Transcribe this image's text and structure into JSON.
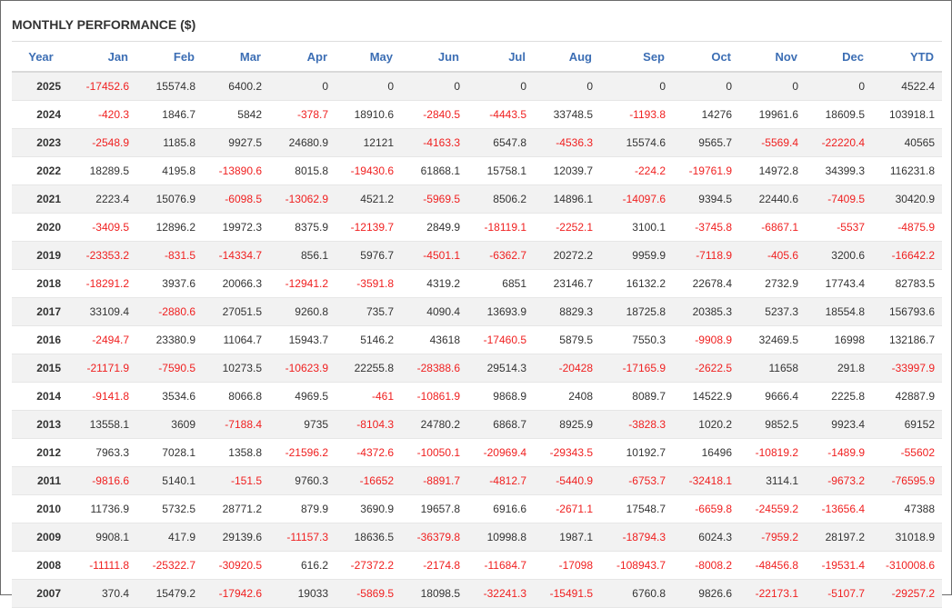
{
  "title": "MONTHLY PERFORMANCE ($)",
  "colors": {
    "header": "#3c6eb4",
    "negative": "#f02020",
    "positive": "#333333",
    "stripe": "#f2f2f2"
  },
  "chart_data": {
    "type": "table",
    "title": "MONTHLY PERFORMANCE ($)",
    "columns": [
      "Year",
      "Jan",
      "Feb",
      "Mar",
      "Apr",
      "May",
      "Jun",
      "Jul",
      "Aug",
      "Sep",
      "Oct",
      "Nov",
      "Dec",
      "YTD"
    ],
    "rows": [
      [
        "2025",
        "-17452.6",
        "15574.8",
        "6400.2",
        "0",
        "0",
        "0",
        "0",
        "0",
        "0",
        "0",
        "0",
        "0",
        "4522.4"
      ],
      [
        "2024",
        "-420.3",
        "1846.7",
        "5842",
        "-378.7",
        "18910.6",
        "-2840.5",
        "-4443.5",
        "33748.5",
        "-1193.8",
        "14276",
        "19961.6",
        "18609.5",
        "103918.1"
      ],
      [
        "2023",
        "-2548.9",
        "1185.8",
        "9927.5",
        "24680.9",
        "12121",
        "-4163.3",
        "6547.8",
        "-4536.3",
        "15574.6",
        "9565.7",
        "-5569.4",
        "-22220.4",
        "40565"
      ],
      [
        "2022",
        "18289.5",
        "4195.8",
        "-13890.6",
        "8015.8",
        "-19430.6",
        "61868.1",
        "15758.1",
        "12039.7",
        "-224.2",
        "-19761.9",
        "14972.8",
        "34399.3",
        "116231.8"
      ],
      [
        "2021",
        "2223.4",
        "15076.9",
        "-6098.5",
        "-13062.9",
        "4521.2",
        "-5969.5",
        "8506.2",
        "14896.1",
        "-14097.6",
        "9394.5",
        "22440.6",
        "-7409.5",
        "30420.9"
      ],
      [
        "2020",
        "-3409.5",
        "12896.2",
        "19972.3",
        "8375.9",
        "-12139.7",
        "2849.9",
        "-18119.1",
        "-2252.1",
        "3100.1",
        "-3745.8",
        "-6867.1",
        "-5537",
        "-4875.9"
      ],
      [
        "2019",
        "-23353.2",
        "-831.5",
        "-14334.7",
        "856.1",
        "5976.7",
        "-4501.1",
        "-6362.7",
        "20272.2",
        "9959.9",
        "-7118.9",
        "-405.6",
        "3200.6",
        "-16642.2"
      ],
      [
        "2018",
        "-18291.2",
        "3937.6",
        "20066.3",
        "-12941.2",
        "-3591.8",
        "4319.2",
        "6851",
        "23146.7",
        "16132.2",
        "22678.4",
        "2732.9",
        "17743.4",
        "82783.5"
      ],
      [
        "2017",
        "33109.4",
        "-2880.6",
        "27051.5",
        "9260.8",
        "735.7",
        "4090.4",
        "13693.9",
        "8829.3",
        "18725.8",
        "20385.3",
        "5237.3",
        "18554.8",
        "156793.6"
      ],
      [
        "2016",
        "-2494.7",
        "23380.9",
        "11064.7",
        "15943.7",
        "5146.2",
        "43618",
        "-17460.5",
        "5879.5",
        "7550.3",
        "-9908.9",
        "32469.5",
        "16998",
        "132186.7"
      ],
      [
        "2015",
        "-21171.9",
        "-7590.5",
        "10273.5",
        "-10623.9",
        "22255.8",
        "-28388.6",
        "29514.3",
        "-20428",
        "-17165.9",
        "-2622.5",
        "11658",
        "291.8",
        "-33997.9"
      ],
      [
        "2014",
        "-9141.8",
        "3534.6",
        "8066.8",
        "4969.5",
        "-461",
        "-10861.9",
        "9868.9",
        "2408",
        "8089.7",
        "14522.9",
        "9666.4",
        "2225.8",
        "42887.9"
      ],
      [
        "2013",
        "13558.1",
        "3609",
        "-7188.4",
        "9735",
        "-8104.3",
        "24780.2",
        "6868.7",
        "8925.9",
        "-3828.3",
        "1020.2",
        "9852.5",
        "9923.4",
        "69152"
      ],
      [
        "2012",
        "7963.3",
        "7028.1",
        "1358.8",
        "-21596.2",
        "-4372.6",
        "-10050.1",
        "-20969.4",
        "-29343.5",
        "10192.7",
        "16496",
        "-10819.2",
        "-1489.9",
        "-55602"
      ],
      [
        "2011",
        "-9816.6",
        "5140.1",
        "-151.5",
        "9760.3",
        "-16652",
        "-8891.7",
        "-4812.7",
        "-5440.9",
        "-6753.7",
        "-32418.1",
        "3114.1",
        "-9673.2",
        "-76595.9"
      ],
      [
        "2010",
        "11736.9",
        "5732.5",
        "28771.2",
        "879.9",
        "3690.9",
        "19657.8",
        "6916.6",
        "-2671.1",
        "17548.7",
        "-6659.8",
        "-24559.2",
        "-13656.4",
        "47388"
      ],
      [
        "2009",
        "9908.1",
        "417.9",
        "29139.6",
        "-11157.3",
        "18636.5",
        "-36379.8",
        "10998.8",
        "1987.1",
        "-18794.3",
        "6024.3",
        "-7959.2",
        "28197.2",
        "31018.9"
      ],
      [
        "2008",
        "-11111.8",
        "-25322.7",
        "-30920.5",
        "616.2",
        "-27372.2",
        "-2174.8",
        "-11684.7",
        "-17098",
        "-108943.7",
        "-8008.2",
        "-48456.8",
        "-19531.4",
        "-310008.6"
      ],
      [
        "2007",
        "370.4",
        "15479.2",
        "-17942.6",
        "19033",
        "-5869.5",
        "18098.5",
        "-32241.3",
        "-15491.5",
        "6760.8",
        "9826.6",
        "-22173.1",
        "-5107.7",
        "-29257.2"
      ]
    ]
  }
}
